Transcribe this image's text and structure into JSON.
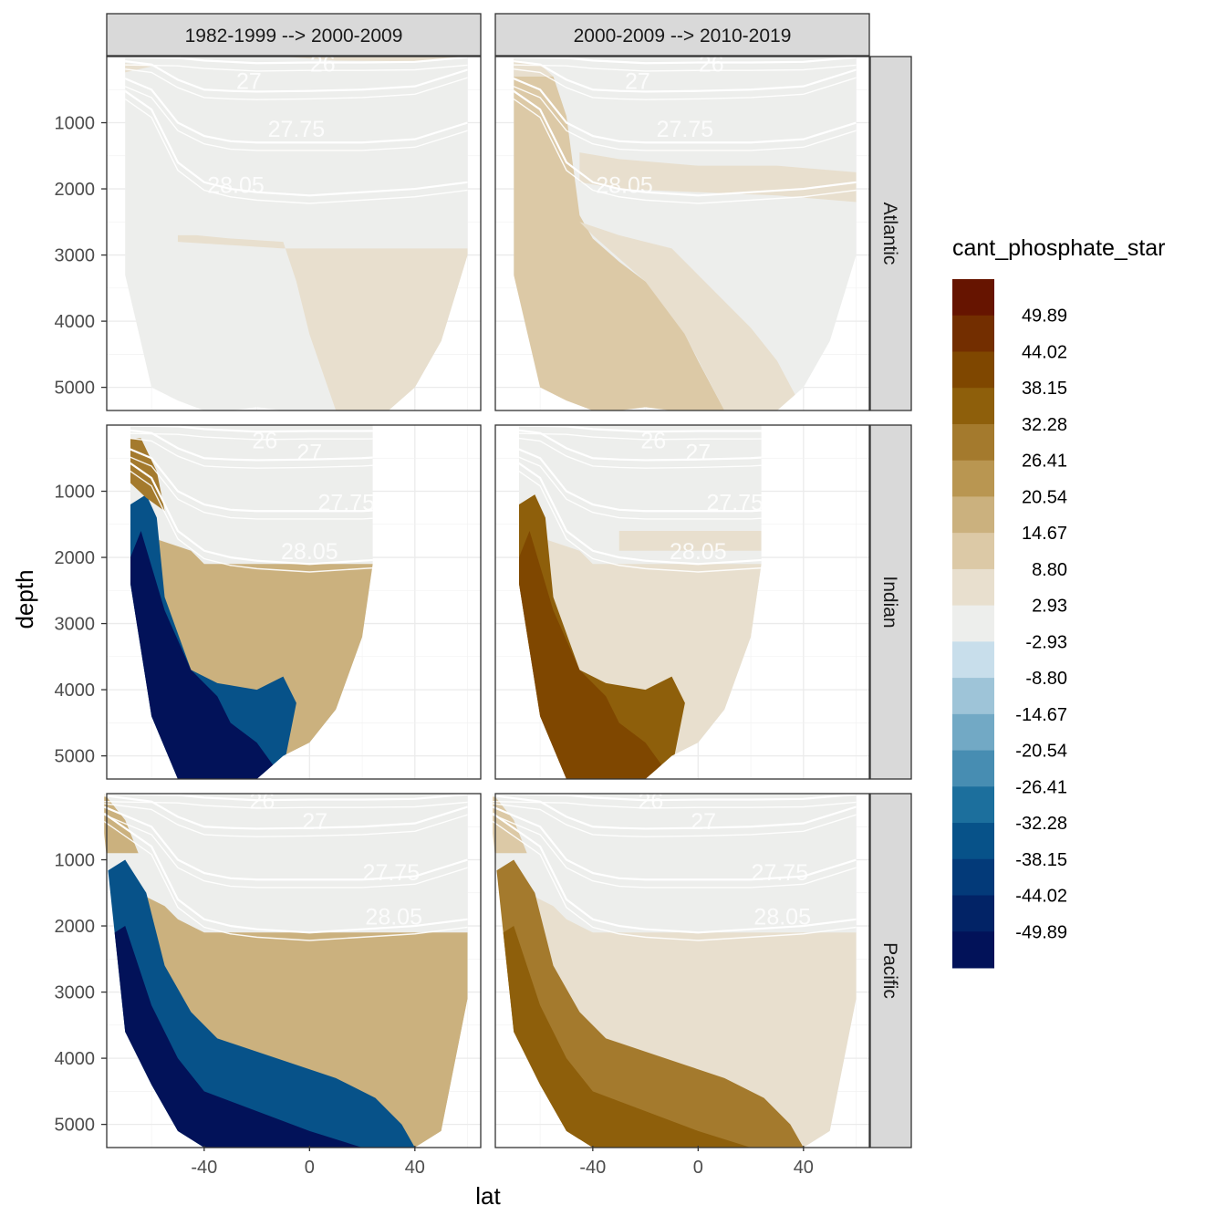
{
  "chart_data": {
    "type": "heatmap",
    "title": "",
    "xlabel": "lat",
    "ylabel": "depth",
    "legend_title": "cant_phosphate_star",
    "legend_placement": "right",
    "grid": true,
    "xlim": [
      -77,
      65
    ],
    "ylim": [
      5350,
      0
    ],
    "x_ticks": [
      -40,
      0,
      40
    ],
    "x_tick_labels": [
      "-40",
      "0",
      "40"
    ],
    "y_ticks": [
      1000,
      2000,
      3000,
      4000,
      5000
    ],
    "y_tick_labels": [
      "1000",
      "2000",
      "3000",
      "4000",
      "5000"
    ],
    "facet_columns": [
      "1982-1999 --> 2000-2009",
      "2000-2009 --> 2010-2019"
    ],
    "facet_rows": [
      "Atlantic",
      "Indian",
      "Pacific"
    ],
    "legend_breaks": [
      "49.89",
      "44.02",
      "38.15",
      "32.28",
      "26.41",
      "20.54",
      "14.67",
      "8.80",
      "2.93",
      "-2.93",
      "-8.80",
      "-14.67",
      "-20.54",
      "-26.41",
      "-32.28",
      "-38.15",
      "-44.02",
      "-49.89"
    ],
    "legend_colors": [
      "#661400",
      "#732E00",
      "#7F4700",
      "#8E5F0B",
      "#A47A2D",
      "#B99651",
      "#CBB17E",
      "#DCC9A6",
      "#E8DFCE",
      "#EDEEEC",
      "#C8DEEB",
      "#9EC4D8",
      "#72A9C5",
      "#478DB2",
      "#1C6F9D",
      "#075289",
      "#033A79",
      "#022366",
      "#021259"
    ],
    "contour_labels": [
      "26",
      "27",
      "27.75",
      "28.05"
    ],
    "contour_label_positions": [
      {
        "basin": "Atlantic",
        "items": [
          {
            "text": "26",
            "lat": 5,
            "depth": 120
          },
          {
            "text": "27",
            "lat": -23,
            "depth": 380
          },
          {
            "text": "27.75",
            "lat": -5,
            "depth": 1100
          },
          {
            "text": "28.05",
            "lat": -28,
            "depth": 1950
          }
        ]
      },
      {
        "basin": "Indian",
        "items": [
          {
            "text": "26",
            "lat": -17,
            "depth": 240
          },
          {
            "text": "27",
            "lat": 0,
            "depth": 420
          },
          {
            "text": "27.75",
            "lat": 14,
            "depth": 1180
          },
          {
            "text": "28.05",
            "lat": 0,
            "depth": 1920
          }
        ]
      },
      {
        "basin": "Pacific",
        "items": [
          {
            "text": "26",
            "lat": -18,
            "depth": 120
          },
          {
            "text": "27",
            "lat": 2,
            "depth": 430
          },
          {
            "text": "27.75",
            "lat": 31,
            "depth": 1200
          },
          {
            "text": "28.05",
            "lat": 32,
            "depth": 1870
          }
        ]
      }
    ],
    "basin_bathymetry": [
      {
        "basin": "Atlantic",
        "lat": [
          -70,
          -60,
          -50,
          -40,
          -30,
          -20,
          -10,
          0,
          10,
          20,
          30,
          40,
          50,
          60
        ],
        "bottom_depth": [
          3300,
          5000,
          5200,
          5350,
          5350,
          5300,
          5350,
          5350,
          5350,
          5350,
          5350,
          5000,
          4300,
          3000
        ]
      },
      {
        "basin": "Indian",
        "lat": [
          -68,
          -60,
          -50,
          -40,
          -30,
          -20,
          -10,
          0,
          10,
          20,
          24
        ],
        "bottom_depth": [
          2400,
          4400,
          5350,
          5350,
          5350,
          5350,
          5000,
          4800,
          4300,
          3200,
          2100
        ]
      },
      {
        "basin": "Pacific",
        "lat": [
          -78,
          -70,
          -60,
          -50,
          -40,
          -30,
          -20,
          -10,
          0,
          10,
          20,
          30,
          40,
          50,
          60
        ],
        "bottom_depth": [
          600,
          3600,
          4400,
          5100,
          5350,
          5350,
          5350,
          5350,
          5350,
          5350,
          5350,
          5350,
          5350,
          5100,
          3100
        ]
      }
    ],
    "isopycnal_layers": [
      {
        "name": "26",
        "lat": [
          -78,
          -50,
          -40,
          -20,
          0,
          20,
          40,
          60
        ],
        "depth": [
          0,
          20,
          60,
          100,
          90,
          90,
          80,
          10
        ]
      },
      {
        "name": "27",
        "lat": [
          -78,
          -60,
          -50,
          -40,
          -30,
          -20,
          0,
          20,
          40,
          60
        ],
        "depth": [
          30,
          120,
          350,
          500,
          520,
          530,
          520,
          500,
          450,
          200
        ]
      },
      {
        "name": "27.75",
        "lat": [
          -78,
          -60,
          -50,
          -40,
          -30,
          -20,
          0,
          20,
          40,
          60
        ],
        "depth": [
          200,
          500,
          1000,
          1200,
          1280,
          1300,
          1300,
          1300,
          1250,
          1000
        ]
      },
      {
        "name": "28.05",
        "lat": [
          -78,
          -60,
          -50,
          -40,
          -30,
          -20,
          0,
          20,
          40,
          60
        ],
        "depth": [
          300,
          800,
          1600,
          1900,
          2000,
          2050,
          2100,
          2050,
          2000,
          1900
        ]
      }
    ],
    "panels": [
      {
        "basin": "Atlantic",
        "period": "1982-1999 --> 2000-2009",
        "polygons": [
          {
            "value_class": "8.80",
            "lat": [
              -50,
              -43,
              -30,
              -10,
              -5,
              0,
              10,
              40,
              60,
              60,
              -10,
              -50
            ],
            "depth": [
              2700,
              2700,
              2750,
              2800,
              3400,
              4200,
              5350,
              5350,
              4300,
              2900,
              2900,
              2800
            ]
          },
          {
            "value_class": "8.80",
            "lat": [
              -77,
              -70,
              -60,
              -77
            ],
            "depth": [
              0,
              100,
              150,
              300
            ]
          },
          {
            "value_class": "8.80",
            "lat": [
              -10,
              10,
              40,
              60,
              60,
              -10
            ],
            "depth": [
              0,
              60,
              70,
              20,
              0,
              0
            ]
          }
        ]
      },
      {
        "basin": "Atlantic",
        "period": "2000-2009 --> 2010-2019",
        "polygons": [
          {
            "value_class": "14.67",
            "lat": [
              -70,
              -55,
              -50,
              -45,
              -40,
              -30,
              -20,
              -10,
              -5,
              0,
              10,
              15,
              -70
            ],
            "depth": [
              300,
              300,
              900,
              2400,
              2750,
              3100,
              3400,
              3700,
              4200,
              4600,
              5350,
              5350,
              5350
            ]
          },
          {
            "value_class": "8.80",
            "lat": [
              -45,
              -30,
              -10,
              0,
              10,
              20,
              30,
              40,
              10,
              -5,
              -20,
              -40
            ],
            "depth": [
              2500,
              2700,
              2900,
              3300,
              3700,
              4100,
              4600,
              5350,
              5350,
              4200,
              3400,
              2700
            ]
          },
          {
            "value_class": "8.80",
            "lat": [
              -45,
              -30,
              0,
              30,
              60,
              60,
              30,
              0,
              -30,
              -45
            ],
            "depth": [
              1450,
              1550,
              1650,
              1650,
              1750,
              2200,
              2100,
              2050,
              2000,
              1900
            ]
          },
          {
            "value_class": "8.80",
            "lat": [
              -77,
              -60,
              -55,
              -77
            ],
            "depth": [
              0,
              120,
              300,
              300
            ]
          }
        ]
      },
      {
        "basin": "Indian",
        "period": "1982-1999 --> 2000-2009",
        "polygons": [
          {
            "value_class": "20.54",
            "lat": [
              -60,
              -45,
              -40,
              -30,
              -10,
              10,
              24,
              24,
              10,
              0,
              -10,
              -40,
              -55
            ],
            "depth": [
              1700,
              1900,
              2100,
              2100,
              2100,
              2100,
              2100,
              3200,
              4300,
              4800,
              5000,
              4200,
              3000
            ]
          },
          {
            "value_class": "-32.28",
            "lat": [
              -68,
              -62,
              -58,
              -55,
              -45,
              -35,
              -20,
              -10,
              -5,
              -10,
              -25,
              -50,
              -68
            ],
            "depth": [
              1200,
              1050,
              1400,
              2600,
              3700,
              3900,
              4000,
              3800,
              4200,
              5200,
              5350,
              5350,
              5000
            ]
          },
          {
            "value_class": "-49.89",
            "lat": [
              -68,
              -64,
              -55,
              -45,
              -35,
              -30,
              -20,
              -10,
              -68
            ],
            "depth": [
              2000,
              1600,
              2800,
              3700,
              4100,
              4500,
              4800,
              5350,
              5350
            ]
          },
          {
            "value_class": "32.28",
            "lat": [
              -70,
              -64,
              -58,
              -55,
              -62,
              -70
            ],
            "depth": [
              200,
              200,
              700,
              1300,
              1100,
              800
            ]
          }
        ]
      },
      {
        "basin": "Indian",
        "period": "2000-2009 --> 2010-2019",
        "polygons": [
          {
            "value_class": "8.80",
            "lat": [
              -60,
              -45,
              -40,
              -30,
              -10,
              10,
              24,
              24,
              10,
              0,
              -10,
              -40,
              -55
            ],
            "depth": [
              1700,
              1900,
              2100,
              2100,
              2100,
              2100,
              2100,
              3200,
              4300,
              4800,
              5000,
              4200,
              3000
            ]
          },
          {
            "value_class": "38.15",
            "lat": [
              -68,
              -62,
              -58,
              -55,
              -45,
              -35,
              -20,
              -10,
              -5,
              -10,
              -25,
              -50,
              -68
            ],
            "depth": [
              1200,
              1050,
              1400,
              2600,
              3700,
              3900,
              4000,
              3800,
              4200,
              5200,
              5350,
              5350,
              5000
            ]
          },
          {
            "value_class": "44.02",
            "lat": [
              -68,
              -64,
              -55,
              -45,
              -35,
              -30,
              -20,
              -10,
              -68
            ],
            "depth": [
              2000,
              1600,
              2800,
              3700,
              4100,
              4500,
              4800,
              5350,
              5350
            ]
          },
          {
            "value_class": "8.80",
            "lat": [
              -30,
              24,
              24,
              -30
            ],
            "depth": [
              1600,
              1600,
              1900,
              1900
            ]
          }
        ]
      },
      {
        "basin": "Pacific",
        "period": "1982-1999 --> 2000-2009",
        "polygons": [
          {
            "value_class": "20.54",
            "lat": [
              -65,
              -55,
              -50,
              -40,
              -20,
              0,
              30,
              60,
              60,
              50,
              40,
              20,
              0,
              -20,
              -40,
              -55
            ],
            "depth": [
              1500,
              1700,
              1900,
              2100,
              2100,
              2100,
              2100,
              2100,
              3100,
              5100,
              5350,
              5000,
              4600,
              4100,
              3700,
              3000
            ]
          },
          {
            "value_class": "-32.28",
            "lat": [
              -78,
              -70,
              -62,
              -55,
              -45,
              -35,
              -20,
              -5,
              10,
              25,
              35,
              40,
              -78
            ],
            "depth": [
              1200,
              1000,
              1500,
              2600,
              3300,
              3700,
              3900,
              4100,
              4300,
              4600,
              5000,
              5350,
              5350
            ]
          },
          {
            "value_class": "-49.89",
            "lat": [
              -78,
              -70,
              -60,
              -50,
              -40,
              -20,
              0,
              20,
              -78
            ],
            "depth": [
              2200,
              2000,
              3200,
              4000,
              4500,
              4800,
              5100,
              5350,
              5350
            ]
          },
          {
            "value_class": "20.54",
            "lat": [
              -78,
              -70,
              -65,
              -78
            ],
            "depth": [
              0,
              400,
              900,
              900
            ]
          }
        ]
      },
      {
        "basin": "Pacific",
        "period": "2000-2009 --> 2010-2019",
        "polygons": [
          {
            "value_class": "8.80",
            "lat": [
              -65,
              -55,
              -50,
              -40,
              -20,
              0,
              30,
              60,
              60,
              50,
              40,
              20,
              0,
              -20,
              -40,
              -55
            ],
            "depth": [
              1500,
              1700,
              1900,
              2100,
              2100,
              2100,
              2100,
              2100,
              3100,
              5100,
              5350,
              5000,
              4600,
              4100,
              3700,
              3000
            ]
          },
          {
            "value_class": "32.28",
            "lat": [
              -78,
              -70,
              -62,
              -55,
              -45,
              -35,
              -20,
              -5,
              10,
              25,
              35,
              40,
              -78
            ],
            "depth": [
              1200,
              1000,
              1500,
              2600,
              3300,
              3700,
              3900,
              4100,
              4300,
              4600,
              5000,
              5350,
              5350
            ]
          },
          {
            "value_class": "38.15",
            "lat": [
              -78,
              -70,
              -60,
              -50,
              -40,
              -20,
              0,
              20,
              -78
            ],
            "depth": [
              2200,
              2000,
              3200,
              4000,
              4500,
              4800,
              5100,
              5350,
              5350
            ]
          },
          {
            "value_class": "14.67",
            "lat": [
              -78,
              -70,
              -65,
              -78
            ],
            "depth": [
              0,
              400,
              900,
              900
            ]
          }
        ]
      }
    ]
  }
}
